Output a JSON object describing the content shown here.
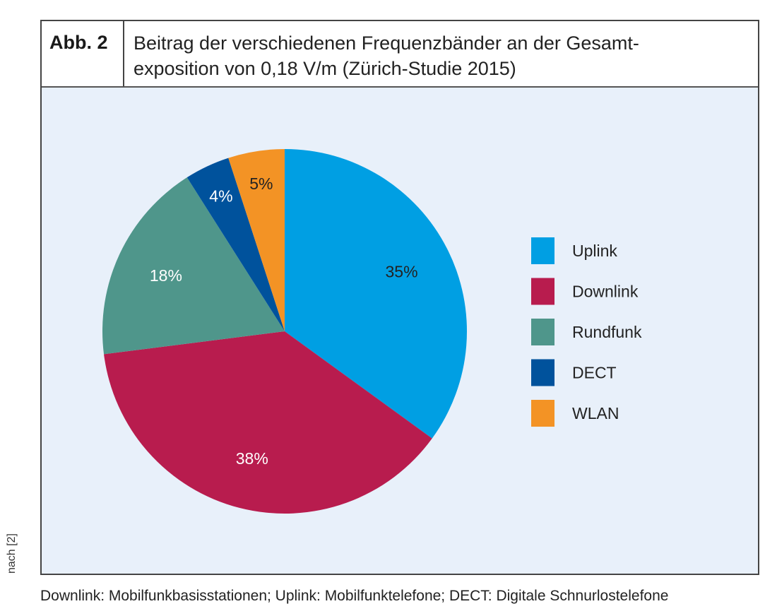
{
  "figure": {
    "label": "Abb. 2",
    "title_line1": "Beitrag der verschiedenen Frequenzbänder an der Gesamt-",
    "title_line2": "exposition von 0,18 V/m (Zürich-Studie 2015)",
    "source": "nach [2]",
    "footnote": "Downlink: Mobilfunkbasisstationen; Uplink: Mobilfunktelefone; DECT: Digitale Schnurlostelefone"
  },
  "chart_data": {
    "type": "pie",
    "title": "Beitrag der verschiedenen Frequenzbänder an der Gesamtexposition von 0,18 V/m (Zürich-Studie 2015)",
    "start_angle": "12 o'clock",
    "direction": "clockwise",
    "legend_position": "right",
    "slices": [
      {
        "name": "Uplink",
        "value": 35,
        "label": "35%",
        "color": "#009fe3",
        "label_color": "#222222"
      },
      {
        "name": "Downlink",
        "value": 38,
        "label": "38%",
        "color": "#b81c4e",
        "label_color": "#ffffff"
      },
      {
        "name": "Rundfunk",
        "value": 18,
        "label": "18%",
        "color": "#4f968b",
        "label_color": "#ffffff"
      },
      {
        "name": "DECT",
        "value": 4,
        "label": "4%",
        "color": "#00529c",
        "label_color": "#ffffff"
      },
      {
        "name": "WLAN",
        "value": 5,
        "label": "5%",
        "color": "#f39325",
        "label_color": "#222222"
      }
    ]
  }
}
